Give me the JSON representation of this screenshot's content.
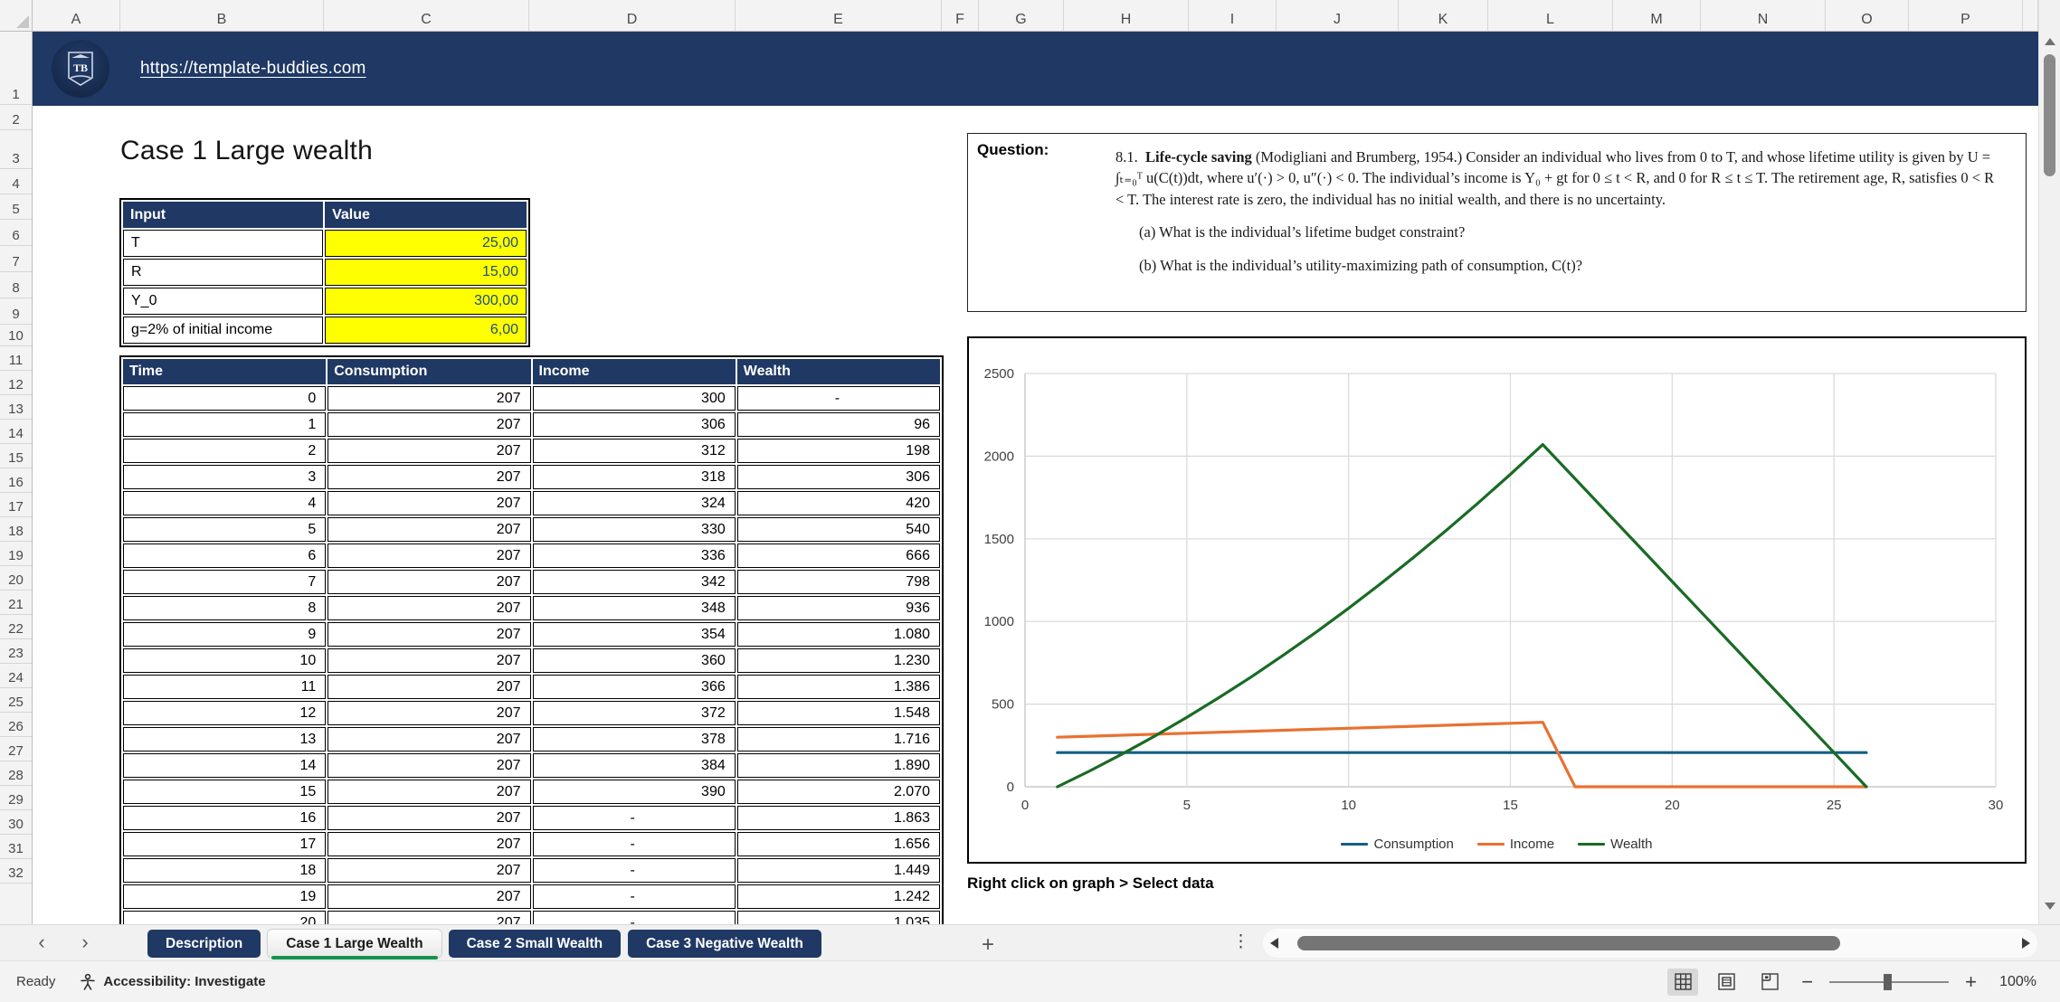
{
  "colors": {
    "banner_navy": "#1F3864",
    "table_header_navy": "#1F3864",
    "input_value_bg": "#FFFF00",
    "input_value_text": "#1F4E79",
    "active_tab_underline": "#13934B",
    "consumption_line": "#156082",
    "income_line": "#E97132",
    "wealth_line": "#196B24"
  },
  "spreadsheet": {
    "column_letters": [
      "A",
      "B",
      "C",
      "D",
      "E",
      "F",
      "G",
      "H",
      "I",
      "J",
      "K",
      "L",
      "M",
      "N",
      "O",
      "P"
    ],
    "row_numbers": [
      1,
      2,
      3,
      4,
      5,
      6,
      7,
      8,
      9,
      10,
      11,
      12,
      13,
      14,
      15,
      16,
      17,
      18,
      19,
      20,
      21,
      22,
      23,
      24,
      25,
      26,
      27,
      28,
      29,
      30,
      31,
      32
    ]
  },
  "banner": {
    "url": "https://template-buddies.com",
    "logo_text": "TB"
  },
  "sheet": {
    "title": "Case 1 Large wealth",
    "input_table": {
      "headers": [
        "Input",
        "Value"
      ],
      "rows": [
        {
          "label": "T",
          "value": "25,00"
        },
        {
          "label": "R",
          "value": "15,00"
        },
        {
          "label": "Y_0",
          "value": "300,00"
        },
        {
          "label": "g=2% of initial income",
          "value": "6,00"
        }
      ]
    },
    "data_table": {
      "headers": [
        "Time",
        "Consumption",
        "Income",
        "Wealth"
      ],
      "rows": [
        [
          "0",
          "207",
          "300",
          "-"
        ],
        [
          "1",
          "207",
          "306",
          "96"
        ],
        [
          "2",
          "207",
          "312",
          "198"
        ],
        [
          "3",
          "207",
          "318",
          "306"
        ],
        [
          "4",
          "207",
          "324",
          "420"
        ],
        [
          "5",
          "207",
          "330",
          "540"
        ],
        [
          "6",
          "207",
          "336",
          "666"
        ],
        [
          "7",
          "207",
          "342",
          "798"
        ],
        [
          "8",
          "207",
          "348",
          "936"
        ],
        [
          "9",
          "207",
          "354",
          "1.080"
        ],
        [
          "10",
          "207",
          "360",
          "1.230"
        ],
        [
          "11",
          "207",
          "366",
          "1.386"
        ],
        [
          "12",
          "207",
          "372",
          "1.548"
        ],
        [
          "13",
          "207",
          "378",
          "1.716"
        ],
        [
          "14",
          "207",
          "384",
          "1.890"
        ],
        [
          "15",
          "207",
          "390",
          "2.070"
        ],
        [
          "16",
          "207",
          "-",
          "1.863"
        ],
        [
          "17",
          "207",
          "-",
          "1.656"
        ],
        [
          "18",
          "207",
          "-",
          "1.449"
        ],
        [
          "19",
          "207",
          "-",
          "1.242"
        ],
        [
          "20",
          "207",
          "-",
          "1.035"
        ]
      ]
    },
    "question": {
      "label": "Question:",
      "number": "8.1.",
      "bold_lead": "Life-cycle saving",
      "body": "(Modigliani and Brumberg, 1954.) Consider an individual who lives from 0 to T, and whose lifetime utility is given by U = ∫ₜ₌₀ᵀ u(C(t))dt, where u′(·) > 0, u″(·) < 0. The individual’s income is Y₀ + gt for 0 ≤ t < R, and 0 for R ≤ t ≤ T. The retirement age, R, satisfies 0 < R < T. The interest rate is zero, the individual has no initial wealth, and there is no uncertainty.",
      "item_a": "(a)  What is the individual’s lifetime budget constraint?",
      "item_b": "(b)  What is the individual’s utility-maximizing path of consumption, C(t)?"
    },
    "chart_note": "Right click on graph > Select data"
  },
  "chart_data": {
    "type": "line",
    "title": "",
    "xlabel": "",
    "ylabel": "",
    "xlim": [
      0,
      30
    ],
    "ylim": [
      0,
      2500
    ],
    "xticks": [
      0,
      5,
      10,
      15,
      20,
      25,
      30
    ],
    "yticks": [
      0,
      500,
      1000,
      1500,
      2000,
      2500
    ],
    "grid": true,
    "legend_position": "bottom",
    "x": [
      1,
      2,
      3,
      4,
      5,
      6,
      7,
      8,
      9,
      10,
      11,
      12,
      13,
      14,
      15,
      16,
      17,
      18,
      19,
      20,
      21,
      22,
      23,
      24,
      25,
      26
    ],
    "series": [
      {
        "name": "Consumption",
        "color": "#156082",
        "values": [
          207,
          207,
          207,
          207,
          207,
          207,
          207,
          207,
          207,
          207,
          207,
          207,
          207,
          207,
          207,
          207,
          207,
          207,
          207,
          207,
          207,
          207,
          207,
          207,
          207,
          207
        ]
      },
      {
        "name": "Income",
        "color": "#E97132",
        "values": [
          300,
          306,
          312,
          318,
          324,
          330,
          336,
          342,
          348,
          354,
          360,
          366,
          372,
          378,
          384,
          390,
          0,
          0,
          0,
          0,
          0,
          0,
          0,
          0,
          0,
          0
        ]
      },
      {
        "name": "Wealth",
        "color": "#196B24",
        "values": [
          0,
          96,
          198,
          306,
          420,
          540,
          666,
          798,
          936,
          1080,
          1230,
          1386,
          1548,
          1716,
          1890,
          2070,
          1863,
          1656,
          1449,
          1242,
          1035,
          828,
          621,
          414,
          207,
          0
        ]
      }
    ]
  },
  "tabs": {
    "items": [
      {
        "label": "Description",
        "active": false
      },
      {
        "label": "Case 1 Large Wealth",
        "active": true
      },
      {
        "label": "Case 2 Small Wealth",
        "active": false
      },
      {
        "label": "Case 3 Negative Wealth",
        "active": false
      }
    ],
    "add_label": "+"
  },
  "status_bar": {
    "ready_label": "Ready",
    "accessibility_label": "Accessibility: Investigate",
    "zoom_label": "100%"
  }
}
